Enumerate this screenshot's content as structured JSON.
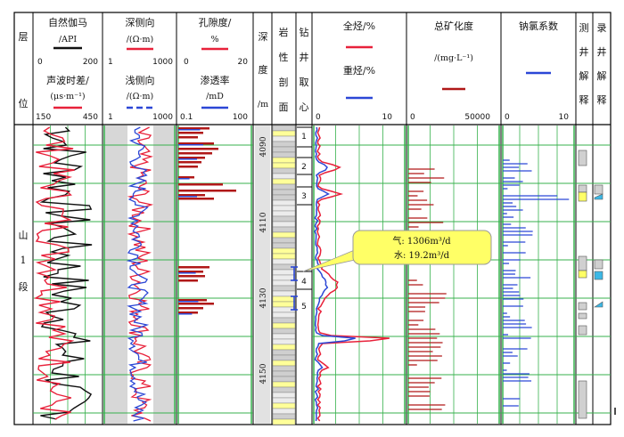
{
  "columns": {
    "layer": {
      "chars": [
        "层",
        "位"
      ]
    },
    "gr": {
      "title": "自然伽马",
      "unit": "/API",
      "min": "0",
      "max": "200"
    },
    "ac": {
      "title": "声波时差/",
      "unit": "(μs·m⁻¹)",
      "min": "150",
      "max": "450"
    },
    "rd": {
      "title": "深侧向",
      "unit": "/(Ω·m)",
      "min": "1",
      "max": "1000"
    },
    "rs": {
      "title": "浅侧向",
      "unit": "/(Ω·m)",
      "min": "1",
      "max": "1000"
    },
    "por": {
      "title": "孔隙度/",
      "unit": "%",
      "min": "0",
      "max": "20"
    },
    "perm": {
      "title": "渗透率",
      "unit": "/mD",
      "min": "0.1",
      "max": "100"
    },
    "depth": {
      "chars": [
        "深",
        "度",
        "/m"
      ]
    },
    "litho": {
      "chars": [
        "岩",
        "性",
        "剖",
        "面"
      ]
    },
    "core": {
      "chars": [
        "钻",
        "井",
        "取",
        "心"
      ]
    },
    "tg": {
      "title": "全烃/%",
      "min": "0",
      "max": "10"
    },
    "hc": {
      "title": "重烃/%"
    },
    "sal": {
      "title": "总矿化度",
      "unit": "/(mg·L⁻¹)",
      "min": "0",
      "max": "50000"
    },
    "nacl": {
      "title": "钠氯系数",
      "min": "0",
      "max": "10"
    },
    "interp": {
      "chars": [
        "测",
        "井",
        "解",
        "释"
      ]
    },
    "mudlog": {
      "chars": [
        "录",
        "井",
        "解",
        "释"
      ]
    }
  },
  "layer_name": [
    "山",
    "1",
    "段"
  ],
  "depth_labels": [
    "4090",
    "4110",
    "4130",
    "4150"
  ],
  "core_numbers": [
    "1",
    "2",
    "3",
    "4",
    "5"
  ],
  "callout": {
    "line1": "气: 1306m³/d",
    "line2": "水: 19.2m³/d"
  },
  "colors": {
    "gr": "#111111",
    "ac": "#e8213a",
    "rd": "#e8213a",
    "rs": "#2b47d6",
    "por": "#b01818",
    "perm": "#2b47d6",
    "tg": "#e8213a",
    "hc": "#2b47d6",
    "sal": "#b01818",
    "nacl": "#2b47d6",
    "grid": "#37b24d",
    "callout": "#ffff66"
  }
}
